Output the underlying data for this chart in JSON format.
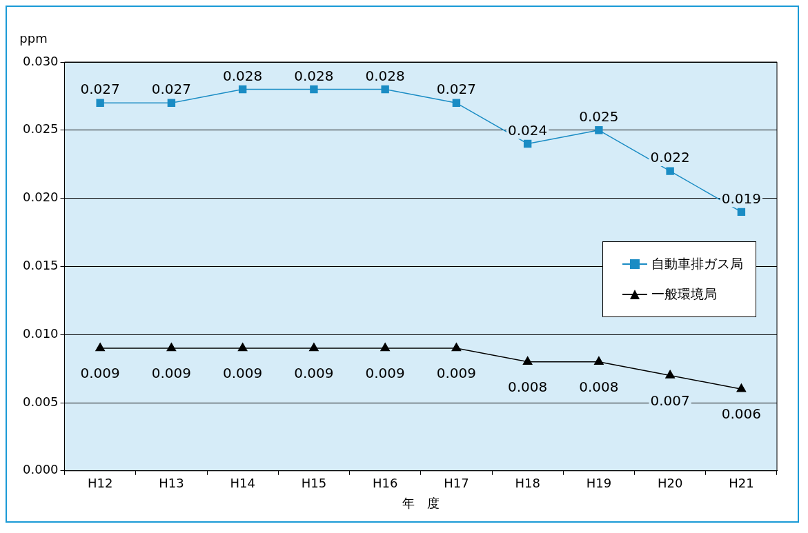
{
  "chart_data": {
    "type": "line",
    "xlabel": "年　度",
    "ylabel": "ppm",
    "categories": [
      "H12",
      "H13",
      "H14",
      "H15",
      "H16",
      "H17",
      "H18",
      "H19",
      "H20",
      "H21"
    ],
    "series": [
      {
        "name": "自動車排ガス局",
        "color": "#1a8cc4",
        "marker": "square",
        "values": [
          0.027,
          0.027,
          0.028,
          0.028,
          0.028,
          0.027,
          0.024,
          0.025,
          0.022,
          0.019
        ]
      },
      {
        "name": "一般環境局",
        "color": "#000000",
        "marker": "triangle",
        "values": [
          0.009,
          0.009,
          0.009,
          0.009,
          0.009,
          0.009,
          0.008,
          0.008,
          0.007,
          0.006
        ]
      }
    ],
    "ylim": [
      0,
      0.03
    ],
    "yticks": [
      {
        "value": 0,
        "label": "0.000"
      },
      {
        "value": 0.005,
        "label": "0.005"
      },
      {
        "value": 0.01,
        "label": "0.010"
      },
      {
        "value": 0.015,
        "label": "0.015"
      },
      {
        "value": 0.02,
        "label": "0.020"
      },
      {
        "value": 0.025,
        "label": "0.025"
      },
      {
        "value": 0.03,
        "label": "0.030"
      }
    ],
    "grid": "y",
    "legend": "right",
    "data_labels": true,
    "line_style": "solid"
  }
}
